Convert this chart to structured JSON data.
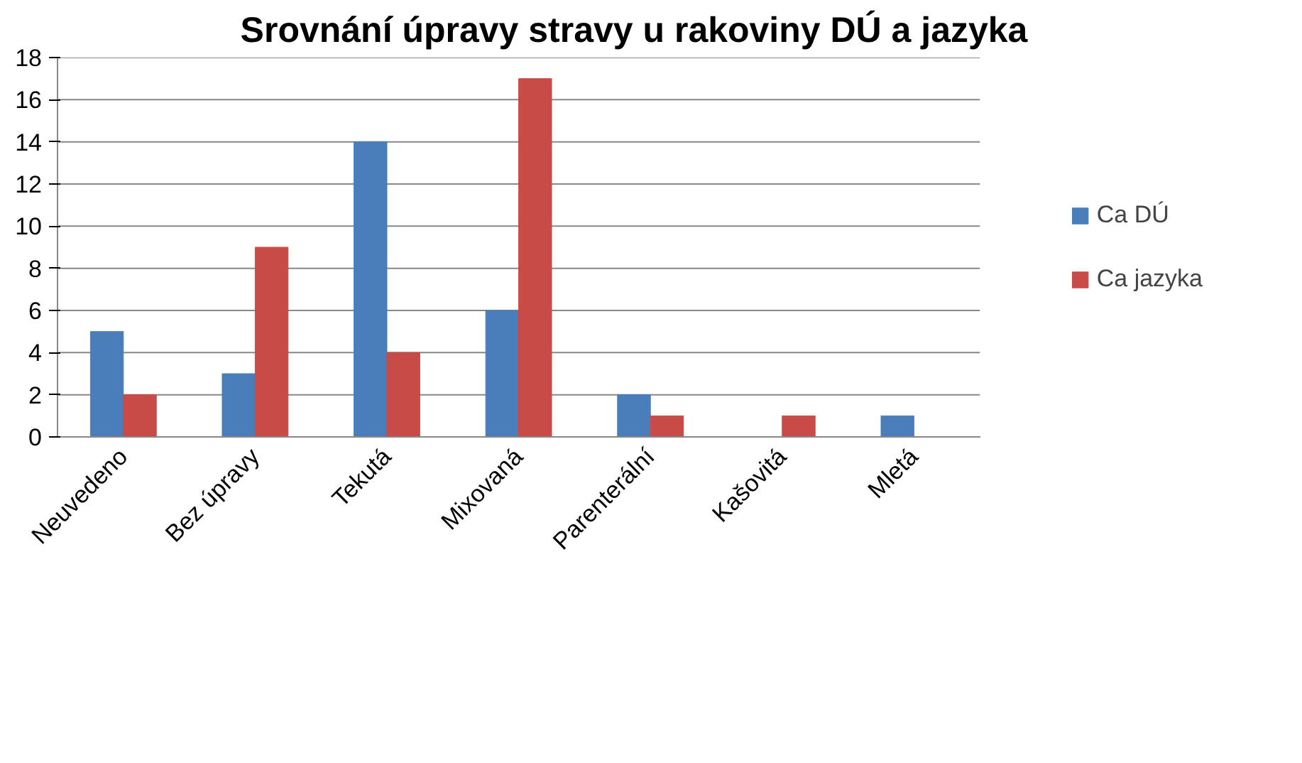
{
  "chart_data": {
    "type": "bar",
    "title": "Srovnání úpravy stravy u rakoviny DÚ a jazyka",
    "categories": [
      "Neuvedeno",
      "Bez úpravy",
      "Tekutá",
      "Mixovaná",
      "Parenterální",
      "Kašovitá",
      "Mletá"
    ],
    "series": [
      {
        "name": "Ca DÚ",
        "color": "#4a7ebb",
        "values": [
          5,
          3,
          14,
          6,
          2,
          0,
          1
        ]
      },
      {
        "name": "Ca jazyka",
        "color": "#c84b47",
        "values": [
          2,
          9,
          4,
          17,
          1,
          1,
          0
        ]
      }
    ],
    "ylim": [
      0,
      18
    ],
    "yticks": [
      0,
      2,
      4,
      6,
      8,
      10,
      12,
      14,
      16,
      18
    ],
    "grid": "y",
    "legend": "right"
  }
}
